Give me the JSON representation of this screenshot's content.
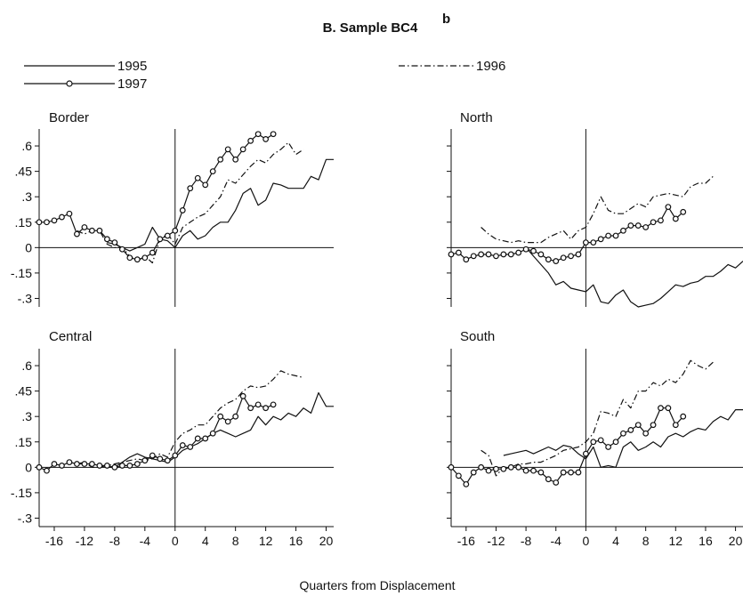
{
  "figure": {
    "title": "B. Sample BC4",
    "title_superscript": "b",
    "xlabel": "Quarters from Displacement"
  },
  "chart_data": [
    {
      "type": "line",
      "title": "Border",
      "xlim": [
        -18,
        21
      ],
      "ylim": [
        -0.35,
        0.7
      ],
      "x_ticks": [
        -16,
        -12,
        -8,
        -4,
        0,
        4,
        8,
        12,
        16,
        20
      ],
      "y_ticks": [
        {
          "value": 0.6,
          "label": ".6"
        },
        {
          "value": 0.45,
          "label": ".45"
        },
        {
          "value": 0.3,
          "label": ".3"
        },
        {
          "value": 0.15,
          "label": ".15"
        },
        {
          "value": 0,
          "label": "0"
        },
        {
          "value": -0.15,
          "label": "-.15"
        },
        {
          "value": -0.3,
          "label": "-.3"
        }
      ],
      "series": [
        {
          "name": "1995",
          "x": [
            -9,
            -8,
            -7,
            -6,
            -5,
            -4,
            -3,
            -2,
            -1,
            0,
            1,
            2,
            3,
            4,
            5,
            6,
            7,
            8,
            9,
            10,
            11,
            12,
            13,
            14,
            15,
            16,
            17,
            18,
            19,
            20,
            21
          ],
          "y": [
            0.03,
            0.02,
            0.0,
            -0.02,
            0.0,
            0.02,
            0.12,
            0.05,
            0.04,
            0.0,
            0.07,
            0.1,
            0.05,
            0.07,
            0.12,
            0.15,
            0.15,
            0.22,
            0.32,
            0.35,
            0.25,
            0.28,
            0.38,
            0.37,
            0.35,
            0.35,
            0.35,
            0.42,
            0.4,
            0.52,
            0.52
          ]
        },
        {
          "name": "1996",
          "x": [
            -13,
            -12,
            -11,
            -10,
            -9,
            -8,
            -7,
            -6,
            -5,
            -4,
            -3,
            -2,
            -1,
            0,
            1,
            2,
            3,
            4,
            5,
            6,
            7,
            8,
            9,
            10,
            11,
            12,
            13,
            14,
            15,
            16,
            17
          ],
          "y": [
            0.1,
            0.08,
            0.1,
            0.1,
            0.02,
            0.0,
            0.0,
            -0.05,
            -0.08,
            -0.05,
            -0.09,
            0.05,
            0.08,
            0.02,
            0.12,
            0.15,
            0.18,
            0.2,
            0.25,
            0.3,
            0.4,
            0.38,
            0.43,
            0.48,
            0.52,
            0.5,
            0.55,
            0.58,
            0.62,
            0.55,
            0.58
          ]
        },
        {
          "name": "1997",
          "x": [
            -18,
            -17,
            -16,
            -15,
            -14,
            -13,
            -12,
            -11,
            -10,
            -9,
            -8,
            -7,
            -6,
            -5,
            -4,
            -3,
            -2,
            -1,
            0,
            1,
            2,
            3,
            4,
            5,
            6,
            7,
            8,
            9,
            10,
            11,
            12,
            13
          ],
          "y": [
            0.15,
            0.15,
            0.16,
            0.18,
            0.2,
            0.08,
            0.12,
            0.1,
            0.1,
            0.05,
            0.03,
            -0.01,
            -0.06,
            -0.07,
            -0.06,
            -0.03,
            0.05,
            0.07,
            0.1,
            0.22,
            0.35,
            0.41,
            0.37,
            0.45,
            0.52,
            0.58,
            0.52,
            0.58,
            0.63,
            0.67,
            0.64,
            0.67
          ]
        }
      ]
    },
    {
      "type": "line",
      "title": "North",
      "xlim": [
        -18,
        21
      ],
      "ylim": [
        -0.35,
        0.7
      ],
      "x_ticks": [
        -16,
        -12,
        -8,
        -4,
        0,
        4,
        8,
        12,
        16,
        20
      ],
      "y_ticks": [
        {
          "value": 0.6,
          "label": ".6"
        },
        {
          "value": 0.45,
          "label": ".45"
        },
        {
          "value": 0.3,
          "label": ".3"
        },
        {
          "value": 0.15,
          "label": ".15"
        },
        {
          "value": 0,
          "label": "0"
        },
        {
          "value": -0.15,
          "label": "-.15"
        },
        {
          "value": -0.3,
          "label": "-.3"
        }
      ],
      "series": [
        {
          "name": "1995",
          "x": [
            -8,
            -7,
            -6,
            -5,
            -4,
            -3,
            -2,
            -1,
            0,
            1,
            2,
            3,
            4,
            5,
            6,
            7,
            8,
            9,
            10,
            11,
            12,
            13,
            14,
            15,
            16,
            17,
            18,
            19,
            20,
            21
          ],
          "y": [
            0.0,
            -0.05,
            -0.1,
            -0.15,
            -0.22,
            -0.2,
            -0.24,
            -0.25,
            -0.26,
            -0.22,
            -0.32,
            -0.33,
            -0.28,
            -0.25,
            -0.32,
            -0.35,
            -0.34,
            -0.33,
            -0.3,
            -0.26,
            -0.22,
            -0.23,
            -0.21,
            -0.2,
            -0.17,
            -0.17,
            -0.14,
            -0.1,
            -0.12,
            -0.08
          ]
        },
        {
          "name": "1996",
          "x": [
            -14,
            -13,
            -12,
            -11,
            -10,
            -9,
            -8,
            -7,
            -6,
            -5,
            -4,
            -3,
            -2,
            -1,
            0,
            1,
            2,
            3,
            4,
            5,
            6,
            7,
            8,
            9,
            10,
            11,
            12,
            13,
            14,
            15,
            16,
            17
          ],
          "y": [
            0.12,
            0.08,
            0.05,
            0.04,
            0.03,
            0.04,
            0.03,
            0.03,
            0.03,
            0.06,
            0.08,
            0.1,
            0.05,
            0.1,
            0.12,
            0.2,
            0.3,
            0.22,
            0.2,
            0.2,
            0.23,
            0.26,
            0.24,
            0.3,
            0.31,
            0.32,
            0.31,
            0.3,
            0.36,
            0.38,
            0.38,
            0.42
          ]
        },
        {
          "name": "1997",
          "x": [
            -18,
            -17,
            -16,
            -15,
            -14,
            -13,
            -12,
            -11,
            -10,
            -9,
            -8,
            -7,
            -6,
            -5,
            -4,
            -3,
            -2,
            -1,
            0,
            1,
            2,
            3,
            4,
            5,
            6,
            7,
            8,
            9,
            10,
            11,
            12,
            13
          ],
          "y": [
            -0.04,
            -0.03,
            -0.07,
            -0.05,
            -0.04,
            -0.04,
            -0.05,
            -0.04,
            -0.04,
            -0.03,
            -0.01,
            -0.02,
            -0.04,
            -0.07,
            -0.08,
            -0.06,
            -0.05,
            -0.04,
            0.03,
            0.03,
            0.05,
            0.07,
            0.07,
            0.1,
            0.13,
            0.13,
            0.12,
            0.15,
            0.16,
            0.24,
            0.17,
            0.21
          ]
        }
      ]
    },
    {
      "type": "line",
      "title": "Central",
      "xlim": [
        -18,
        21
      ],
      "ylim": [
        -0.35,
        0.7
      ],
      "x_ticks": [
        -16,
        -12,
        -8,
        -4,
        0,
        4,
        8,
        12,
        16,
        20
      ],
      "y_ticks": [
        {
          "value": 0.6,
          "label": ".6"
        },
        {
          "value": 0.45,
          "label": ".45"
        },
        {
          "value": 0.3,
          "label": ".3"
        },
        {
          "value": 0.15,
          "label": ".15"
        },
        {
          "value": 0,
          "label": "0"
        },
        {
          "value": -0.15,
          "label": "-.15"
        },
        {
          "value": -0.3,
          "label": "-.3"
        }
      ],
      "series": [
        {
          "name": "1995",
          "x": [
            -9,
            -8,
            -7,
            -6,
            -5,
            -4,
            -3,
            -2,
            -1,
            0,
            1,
            2,
            3,
            4,
            5,
            6,
            7,
            8,
            9,
            10,
            11,
            12,
            13,
            14,
            15,
            16,
            17,
            18,
            19,
            20,
            21
          ],
          "y": [
            0.0,
            0.0,
            0.03,
            0.06,
            0.08,
            0.06,
            0.05,
            0.04,
            0.03,
            0.06,
            0.1,
            0.12,
            0.14,
            0.17,
            0.2,
            0.22,
            0.2,
            0.18,
            0.2,
            0.22,
            0.3,
            0.25,
            0.3,
            0.28,
            0.32,
            0.3,
            0.35,
            0.32,
            0.44,
            0.36,
            0.36
          ]
        },
        {
          "name": "1996",
          "x": [
            -13,
            -12,
            -11,
            -10,
            -9,
            -8,
            -7,
            -6,
            -5,
            -4,
            -3,
            -2,
            -1,
            0,
            1,
            2,
            3,
            4,
            5,
            6,
            7,
            8,
            9,
            10,
            11,
            12,
            13,
            14,
            15,
            16,
            17
          ],
          "y": [
            0.02,
            0.03,
            0.0,
            0.0,
            0.01,
            0.02,
            0.03,
            0.04,
            0.05,
            0.04,
            0.05,
            0.08,
            0.06,
            0.15,
            0.2,
            0.22,
            0.25,
            0.25,
            0.3,
            0.35,
            0.38,
            0.4,
            0.45,
            0.48,
            0.47,
            0.48,
            0.52,
            0.57,
            0.55,
            0.54,
            0.53
          ]
        },
        {
          "name": "1997",
          "x": [
            -18,
            -17,
            -16,
            -15,
            -14,
            -13,
            -12,
            -11,
            -10,
            -9,
            -8,
            -7,
            -6,
            -5,
            -4,
            -3,
            -2,
            -1,
            0,
            1,
            2,
            3,
            4,
            5,
            6,
            7,
            8,
            9,
            10,
            11,
            12,
            13
          ],
          "y": [
            0.0,
            -0.02,
            0.02,
            0.01,
            0.03,
            0.02,
            0.02,
            0.02,
            0.01,
            0.01,
            0.0,
            0.01,
            0.01,
            0.02,
            0.04,
            0.07,
            0.05,
            0.04,
            0.07,
            0.13,
            0.12,
            0.17,
            0.17,
            0.2,
            0.3,
            0.27,
            0.3,
            0.42,
            0.35,
            0.37,
            0.35,
            0.37
          ]
        }
      ]
    },
    {
      "type": "line",
      "title": "South",
      "xlim": [
        -18,
        21
      ],
      "ylim": [
        -0.35,
        0.7
      ],
      "x_ticks": [
        -16,
        -12,
        -8,
        -4,
        0,
        4,
        8,
        12,
        16,
        20
      ],
      "y_ticks": [
        {
          "value": 0.6,
          "label": ".6"
        },
        {
          "value": 0.45,
          "label": ".45"
        },
        {
          "value": 0.3,
          "label": ".3"
        },
        {
          "value": 0.15,
          "label": ".15"
        },
        {
          "value": 0,
          "label": "0"
        },
        {
          "value": -0.15,
          "label": "-.15"
        },
        {
          "value": -0.3,
          "label": "-.3"
        }
      ],
      "series": [
        {
          "name": "1995",
          "x": [
            -11,
            -10,
            -9,
            -8,
            -7,
            -6,
            -5,
            -4,
            -3,
            -2,
            -1,
            0,
            1,
            2,
            3,
            4,
            5,
            6,
            7,
            8,
            9,
            10,
            11,
            12,
            13,
            14,
            15,
            16,
            17,
            18,
            19,
            20,
            21
          ],
          "y": [
            0.07,
            0.08,
            0.09,
            0.1,
            0.08,
            0.1,
            0.12,
            0.1,
            0.13,
            0.12,
            0.08,
            0.05,
            0.12,
            0.0,
            0.01,
            0.0,
            0.12,
            0.15,
            0.1,
            0.12,
            0.15,
            0.12,
            0.18,
            0.2,
            0.18,
            0.21,
            0.23,
            0.22,
            0.27,
            0.3,
            0.28,
            0.34,
            0.34
          ]
        },
        {
          "name": "1996",
          "x": [
            -14,
            -13,
            -12,
            -11,
            -10,
            -9,
            -8,
            -7,
            -6,
            -5,
            -4,
            -3,
            -2,
            -1,
            0,
            1,
            2,
            3,
            4,
            5,
            6,
            7,
            8,
            9,
            10,
            11,
            12,
            13,
            14,
            15,
            16,
            17
          ],
          "y": [
            0.1,
            0.07,
            -0.05,
            0.0,
            0.0,
            0.02,
            0.02,
            0.03,
            0.03,
            0.05,
            0.07,
            0.1,
            0.11,
            0.12,
            0.15,
            0.2,
            0.33,
            0.32,
            0.3,
            0.4,
            0.35,
            0.45,
            0.45,
            0.5,
            0.48,
            0.52,
            0.5,
            0.55,
            0.63,
            0.6,
            0.58,
            0.62
          ]
        },
        {
          "name": "1997",
          "x": [
            -18,
            -17,
            -16,
            -15,
            -14,
            -13,
            -12,
            -11,
            -10,
            -9,
            -8,
            -7,
            -6,
            -5,
            -4,
            -3,
            -2,
            -1,
            0,
            1,
            2,
            3,
            4,
            5,
            6,
            7,
            8,
            9,
            10,
            11,
            12,
            13
          ],
          "y": [
            0.0,
            -0.05,
            -0.1,
            -0.03,
            0.0,
            -0.02,
            -0.01,
            -0.01,
            0.0,
            0.0,
            -0.02,
            -0.02,
            -0.03,
            -0.07,
            -0.09,
            -0.03,
            -0.03,
            -0.03,
            0.08,
            0.15,
            0.16,
            0.12,
            0.15,
            0.2,
            0.22,
            0.25,
            0.2,
            0.25,
            0.35,
            0.35,
            0.25,
            0.3
          ]
        }
      ]
    }
  ]
}
